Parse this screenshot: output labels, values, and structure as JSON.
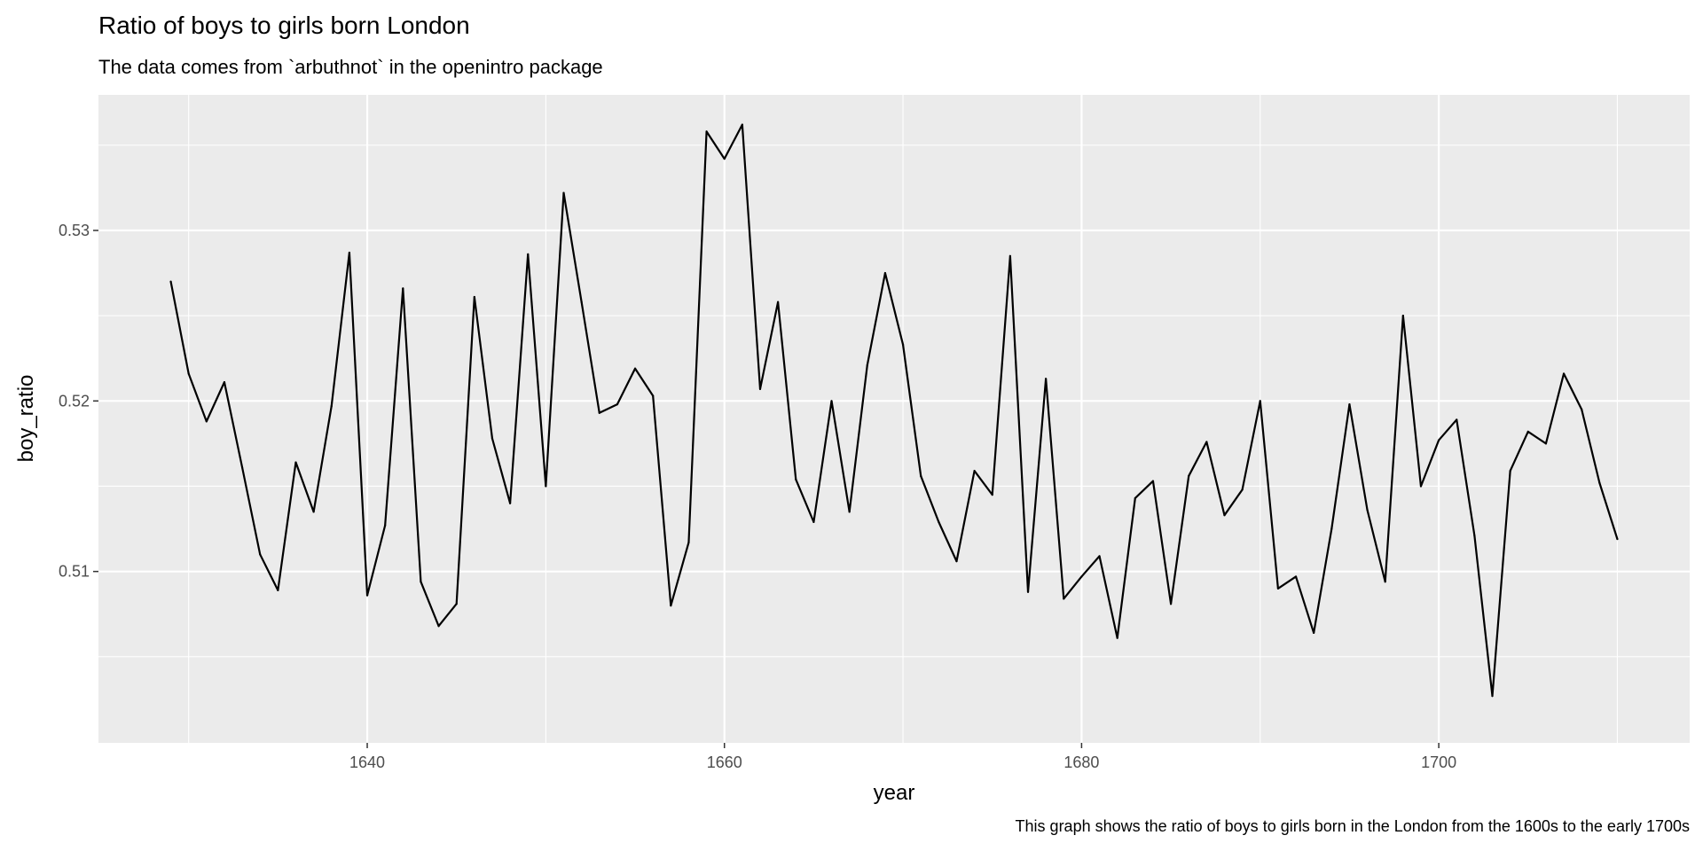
{
  "chart_data": {
    "type": "line",
    "title": "Ratio of boys to girls born London",
    "subtitle": "The data comes from `arbuthnot` in the openintro package",
    "caption": "This graph shows the ratio of boys to girls born in the London from the 1600s to the early 1700s",
    "xlabel": "year",
    "ylabel": "boy_ratio",
    "xlim": [
      1624.95,
      1714.05
    ],
    "ylim": [
      0.49995,
      0.53795
    ],
    "x_ticks": [
      1640,
      1660,
      1680,
      1700
    ],
    "y_ticks": [
      0.51,
      0.52,
      0.53
    ],
    "x_tick_labels": [
      "1640",
      "1660",
      "1680",
      "1700"
    ],
    "y_tick_labels": [
      "0.51",
      "0.52",
      "0.53"
    ],
    "x_minor_ticks": [
      1630,
      1650,
      1670,
      1690,
      1710
    ],
    "y_minor_ticks": [
      0.505,
      0.515,
      0.525,
      0.535
    ],
    "grid": true,
    "legend": "none",
    "colors": {
      "panel_background": "#EBEBEB",
      "grid": "#FFFFFF",
      "line": "#000000"
    },
    "series": [
      {
        "x": [
          1629,
          1630,
          1631,
          1632,
          1633,
          1634,
          1635,
          1636,
          1637,
          1638,
          1639,
          1640,
          1641,
          1642,
          1643,
          1644,
          1645,
          1646,
          1647,
          1648,
          1649,
          1650,
          1651,
          1652,
          1653,
          1654,
          1655,
          1656,
          1657,
          1658,
          1659,
          1660,
          1661,
          1662,
          1663,
          1664,
          1665,
          1666,
          1667,
          1668,
          1669,
          1670,
          1671,
          1672,
          1673,
          1674,
          1675,
          1676,
          1677,
          1678,
          1679,
          1680,
          1681,
          1682,
          1683,
          1684,
          1685,
          1686,
          1687,
          1688,
          1689,
          1690,
          1691,
          1692,
          1693,
          1694,
          1695,
          1696,
          1697,
          1698,
          1699,
          1700,
          1701,
          1702,
          1703,
          1704,
          1705,
          1706,
          1707,
          1708,
          1709,
          1710
        ],
        "values": [
          0.527,
          0.5216,
          0.5188,
          0.5211,
          0.5161,
          0.511,
          0.5089,
          0.5164,
          0.5135,
          0.5197,
          0.5287,
          0.5086,
          0.5127,
          0.5266,
          0.5094,
          0.5068,
          0.5081,
          0.5261,
          0.5178,
          0.514,
          0.5286,
          0.515,
          0.5322,
          0.5258,
          0.5193,
          0.5198,
          0.5219,
          0.5203,
          0.508,
          0.5117,
          0.5358,
          0.5342,
          0.5362,
          0.5207,
          0.5258,
          0.5154,
          0.5129,
          0.52,
          0.5135,
          0.5221,
          0.5275,
          0.5233,
          0.5156,
          0.5129,
          0.5106,
          0.5159,
          0.5145,
          0.5285,
          0.5088,
          0.5213,
          0.5084,
          0.5097,
          0.5109,
          0.5061,
          0.5143,
          0.5153,
          0.5081,
          0.5156,
          0.5176,
          0.5133,
          0.5148,
          0.52,
          0.509,
          0.5097,
          0.5064,
          0.5125,
          0.5198,
          0.5136,
          0.5094,
          0.525,
          0.515,
          0.5177,
          0.5189,
          0.5121,
          0.5027,
          0.5159,
          0.5182,
          0.5175,
          0.5216,
          0.5195,
          0.5152,
          0.5119
        ]
      }
    ]
  }
}
